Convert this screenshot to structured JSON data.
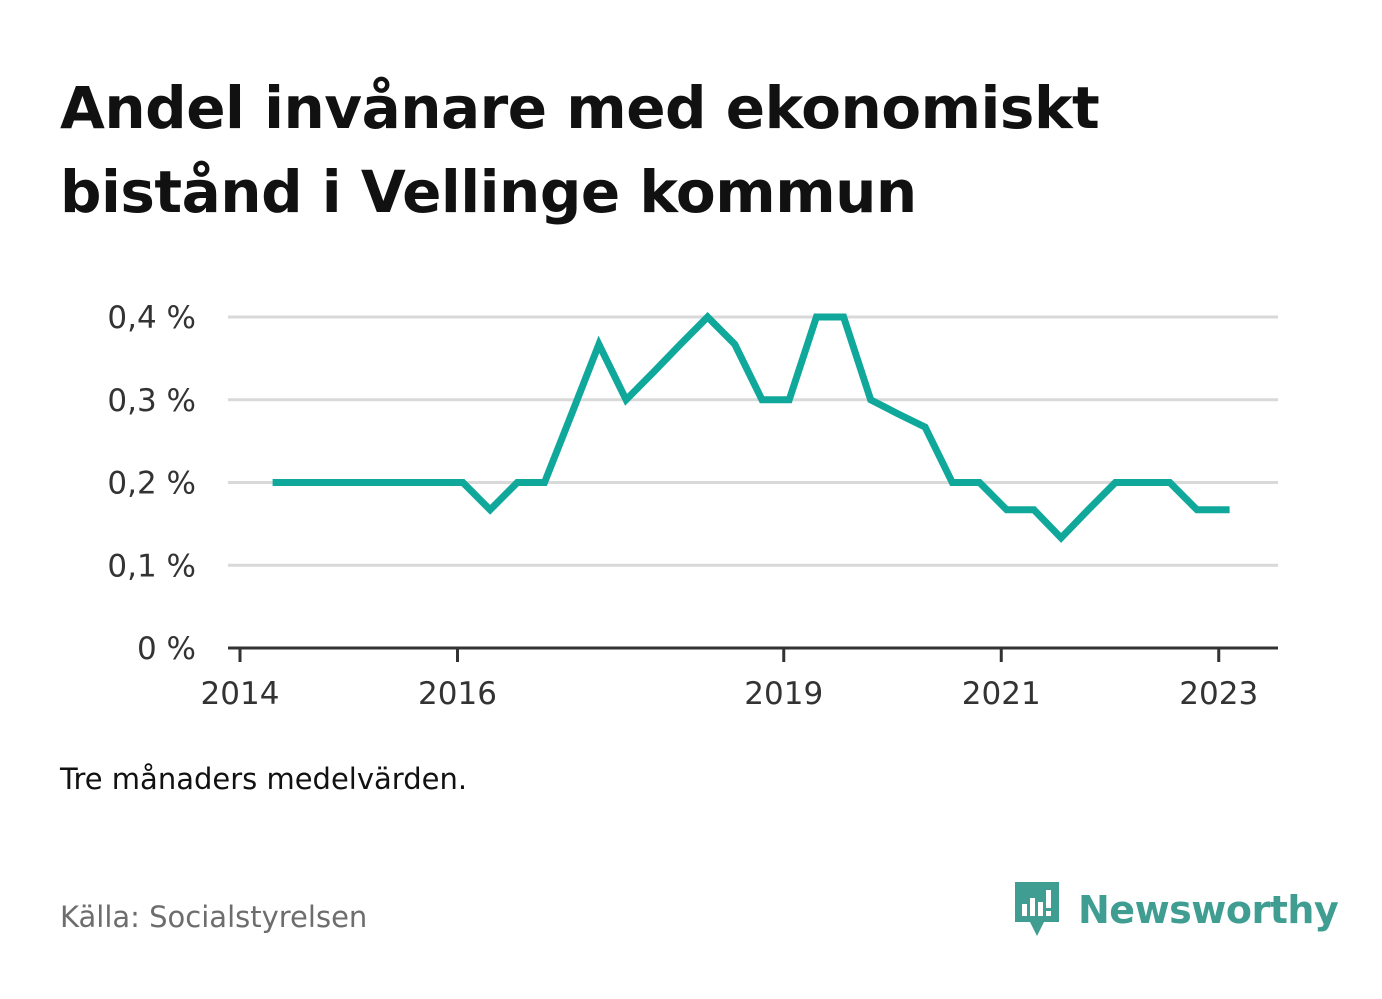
{
  "header": {
    "title_line1": "Andel invånare med ekonomiskt",
    "title_line2": "bistånd i Vellinge kommun"
  },
  "colors": {
    "line": "#10a89b",
    "grid": "#d9d9d9",
    "axis": "#333333",
    "brand": "#3f9e91"
  },
  "chart_data": {
    "type": "line",
    "title": "Andel invånare med ekonomiskt bistånd i Vellinge kommun",
    "xlabel": "",
    "ylabel": "",
    "ylim": [
      0,
      0.4
    ],
    "y_ticks": [
      0,
      0.1,
      0.2,
      0.3,
      0.4
    ],
    "y_tick_labels": [
      "0 %",
      "0,1 %",
      "0,2 %",
      "0,3 %",
      "0,4 %"
    ],
    "x_ticks": [
      2014,
      2016,
      2019,
      2021,
      2023
    ],
    "x_tick_labels": [
      "2014",
      "2016",
      "2019",
      "2021",
      "2023"
    ],
    "xlim": [
      2014,
      2023.55
    ],
    "grid": true,
    "legend": "none",
    "series": [
      {
        "values": [
          [
            2014.3,
            0.2
          ],
          [
            2014.55,
            0.2
          ],
          [
            2014.8,
            0.2
          ],
          [
            2015.05,
            0.2
          ],
          [
            2015.3,
            0.2
          ],
          [
            2015.55,
            0.2
          ],
          [
            2015.8,
            0.2
          ],
          [
            2016.05,
            0.2
          ],
          [
            2016.3,
            0.167
          ],
          [
            2016.55,
            0.2
          ],
          [
            2016.8,
            0.2
          ],
          [
            2017.05,
            0.283
          ],
          [
            2017.3,
            0.367
          ],
          [
            2017.55,
            0.3
          ],
          [
            2017.8,
            0.333
          ],
          [
            2018.05,
            0.367
          ],
          [
            2018.3,
            0.4
          ],
          [
            2018.55,
            0.367
          ],
          [
            2018.8,
            0.3
          ],
          [
            2019.05,
            0.3
          ],
          [
            2019.3,
            0.4
          ],
          [
            2019.55,
            0.4
          ],
          [
            2019.8,
            0.3
          ],
          [
            2020.05,
            0.283
          ],
          [
            2020.3,
            0.267
          ],
          [
            2020.55,
            0.2
          ],
          [
            2020.8,
            0.2
          ],
          [
            2021.05,
            0.167
          ],
          [
            2021.3,
            0.167
          ],
          [
            2021.55,
            0.133
          ],
          [
            2021.8,
            0.167
          ],
          [
            2022.05,
            0.2
          ],
          [
            2022.3,
            0.2
          ],
          [
            2022.55,
            0.2
          ],
          [
            2022.8,
            0.167
          ],
          [
            2023.1,
            0.167
          ]
        ]
      }
    ]
  },
  "footer": {
    "note": "Tre månaders medelvärden.",
    "source": "Källa: Socialstyrelsen",
    "brand_name": "Newsworthy"
  }
}
